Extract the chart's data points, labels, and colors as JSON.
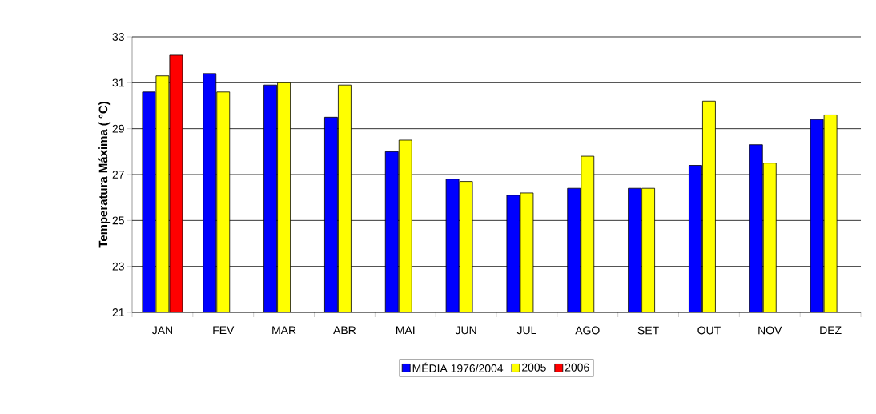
{
  "chart_data": {
    "type": "bar",
    "ylabel": "Temperatura Máxima ( °C)",
    "categories": [
      "JAN",
      "FEV",
      "MAR",
      "ABR",
      "MAI",
      "JUN",
      "JUL",
      "AGO",
      "SET",
      "OUT",
      "NOV",
      "DEZ"
    ],
    "series": [
      {
        "name": "MÉDIA 1976/2004",
        "color": "#0000ff",
        "values": [
          30.6,
          31.4,
          30.9,
          29.5,
          28.0,
          26.8,
          26.1,
          26.4,
          26.4,
          27.4,
          28.3,
          29.4
        ]
      },
      {
        "name": "2005",
        "color": "#ffff00",
        "values": [
          31.3,
          30.6,
          31.0,
          30.9,
          28.5,
          26.7,
          26.2,
          27.8,
          26.4,
          30.2,
          27.5,
          29.6
        ]
      },
      {
        "name": "2006",
        "color": "#ff0000",
        "values": [
          32.2,
          null,
          null,
          null,
          null,
          null,
          null,
          null,
          null,
          null,
          null,
          null
        ]
      }
    ],
    "ylim": [
      21,
      33
    ],
    "yticks": [
      21,
      23,
      25,
      27,
      29,
      31,
      33
    ],
    "grid": "y",
    "legend": "bottom"
  }
}
